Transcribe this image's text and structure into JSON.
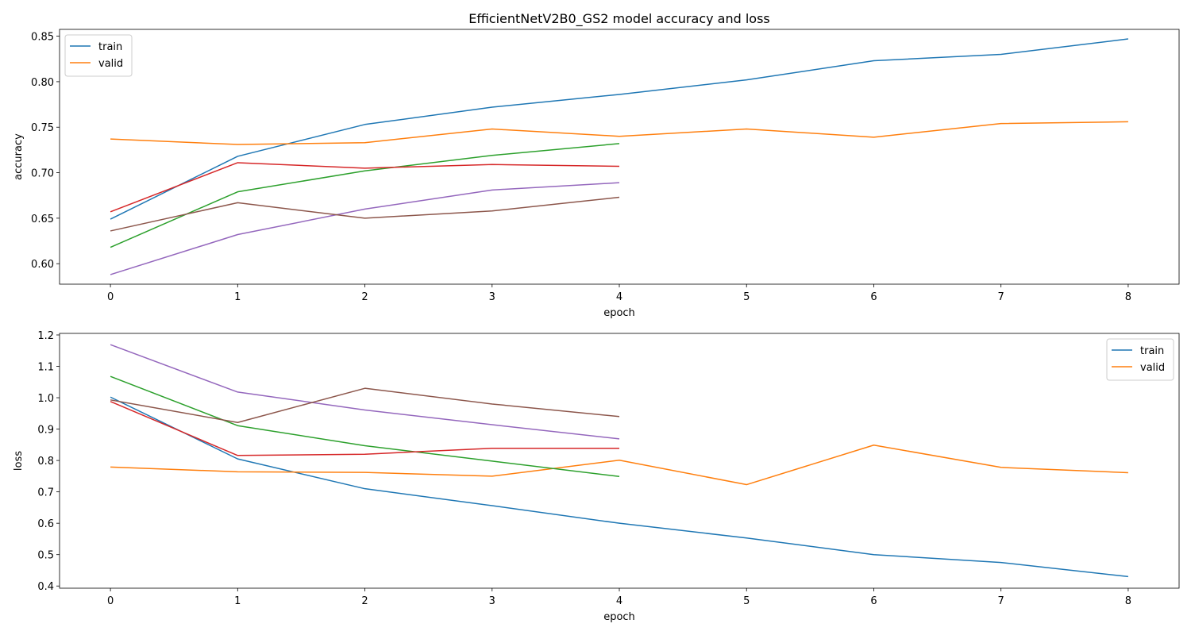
{
  "figure_title": "EfficientNetV2B0_GS2 model accuracy and loss",
  "colors": [
    "#1f77b4",
    "#ff7f0e",
    "#2ca02c",
    "#d62728",
    "#9467bd",
    "#8c564b"
  ],
  "chart_data": [
    {
      "type": "line",
      "xlabel": "epoch",
      "ylabel": "accuracy",
      "xlim": [
        -0.4,
        8.4
      ],
      "ylim": [
        0.5775,
        0.8575
      ],
      "xticks": [
        0,
        1,
        2,
        3,
        4,
        5,
        6,
        7,
        8
      ],
      "yticks": [
        0.6,
        0.65,
        0.7,
        0.75,
        0.8,
        0.85
      ],
      "yticklabels": [
        "0.60",
        "0.65",
        "0.70",
        "0.75",
        "0.80",
        "0.85"
      ],
      "legend": {
        "position": "upper-left",
        "entries": [
          "train",
          "valid"
        ]
      },
      "series": [
        {
          "name": "train",
          "color": "#1f77b4",
          "x": [
            0,
            1,
            2,
            3,
            4,
            5,
            6,
            7,
            8
          ],
          "values": [
            0.649,
            0.718,
            0.753,
            0.772,
            0.786,
            0.802,
            0.823,
            0.83,
            0.847
          ]
        },
        {
          "name": "valid",
          "color": "#ff7f0e",
          "x": [
            0,
            1,
            2,
            3,
            4,
            5,
            6,
            7,
            8
          ],
          "values": [
            0.737,
            0.731,
            0.733,
            0.748,
            0.74,
            0.748,
            0.739,
            0.754,
            0.756
          ]
        },
        {
          "color": "#2ca02c",
          "x": [
            0,
            1,
            2,
            3,
            4
          ],
          "values": [
            0.618,
            0.679,
            0.702,
            0.719,
            0.732
          ]
        },
        {
          "color": "#d62728",
          "x": [
            0,
            1,
            2,
            3,
            4
          ],
          "values": [
            0.657,
            0.711,
            0.705,
            0.709,
            0.707
          ]
        },
        {
          "color": "#9467bd",
          "x": [
            0,
            1,
            2,
            3,
            4
          ],
          "values": [
            0.588,
            0.632,
            0.66,
            0.681,
            0.689
          ]
        },
        {
          "color": "#8c564b",
          "x": [
            0,
            1,
            2,
            3,
            4
          ],
          "values": [
            0.636,
            0.667,
            0.65,
            0.658,
            0.673
          ]
        }
      ]
    },
    {
      "type": "line",
      "xlabel": "epoch",
      "ylabel": "loss",
      "xlim": [
        -0.4,
        8.4
      ],
      "ylim": [
        0.393,
        1.205
      ],
      "xticks": [
        0,
        1,
        2,
        3,
        4,
        5,
        6,
        7,
        8
      ],
      "yticks": [
        0.4,
        0.5,
        0.6,
        0.7,
        0.8,
        0.9,
        1.0,
        1.1,
        1.2
      ],
      "yticklabels": [
        "0.4",
        "0.5",
        "0.6",
        "0.7",
        "0.8",
        "0.9",
        "1.0",
        "1.1",
        "1.2"
      ],
      "legend": {
        "position": "upper-right",
        "entries": [
          "train",
          "valid"
        ]
      },
      "series": [
        {
          "name": "train",
          "color": "#1f77b4",
          "x": [
            0,
            1,
            2,
            3,
            4,
            5,
            6,
            7,
            8
          ],
          "values": [
            1.002,
            0.805,
            0.71,
            0.656,
            0.6,
            0.553,
            0.5,
            0.475,
            0.43
          ]
        },
        {
          "name": "valid",
          "color": "#ff7f0e",
          "x": [
            0,
            1,
            2,
            3,
            4,
            5,
            6,
            7,
            8
          ],
          "values": [
            0.779,
            0.764,
            0.762,
            0.75,
            0.801,
            0.723,
            0.849,
            0.778,
            0.761
          ]
        },
        {
          "color": "#2ca02c",
          "x": [
            0,
            1,
            2,
            3,
            4
          ],
          "values": [
            1.068,
            0.911,
            0.847,
            0.798,
            0.749
          ]
        },
        {
          "color": "#d62728",
          "x": [
            0,
            1,
            2,
            3,
            4
          ],
          "values": [
            0.988,
            0.816,
            0.82,
            0.839,
            0.839
          ]
        },
        {
          "color": "#9467bd",
          "x": [
            0,
            1,
            2,
            3,
            4
          ],
          "values": [
            1.169,
            1.018,
            0.961,
            0.914,
            0.869
          ]
        },
        {
          "color": "#8c564b",
          "x": [
            0,
            1,
            2,
            3,
            4
          ],
          "values": [
            0.993,
            0.921,
            1.03,
            0.98,
            0.94
          ]
        }
      ]
    }
  ]
}
